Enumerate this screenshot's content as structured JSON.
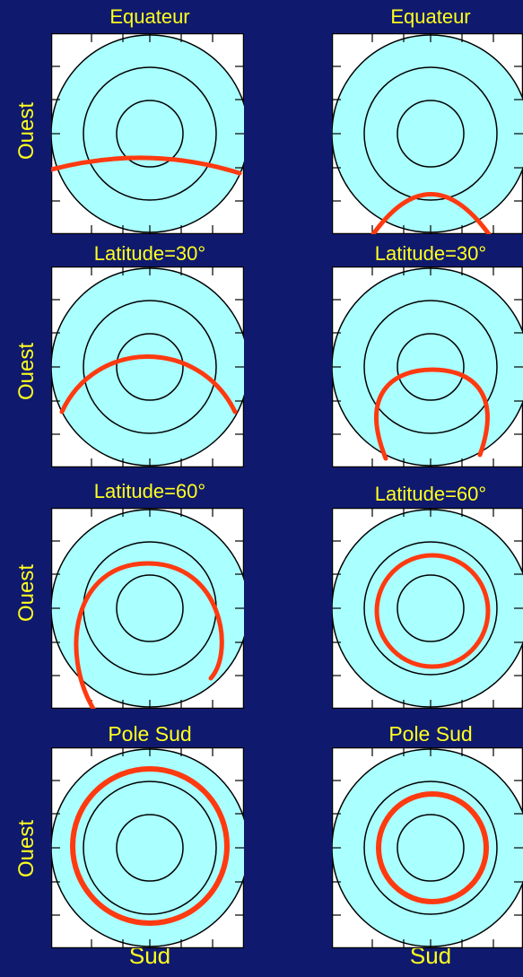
{
  "left_titles": [
    "Equateur",
    "Latitude=30°",
    "Latitude=60°",
    "Pole Sud"
  ],
  "right_titles": [
    "Equateur",
    "Latitude=30°",
    "Latitude=60°",
    "Pole Sud"
  ],
  "side_label": "Ouest",
  "bottom_label": "Sud",
  "colors": {
    "background": "#0f1a6e",
    "text": "#ffff1e",
    "sky": "#aaffff",
    "path": "#ff3a10"
  }
}
